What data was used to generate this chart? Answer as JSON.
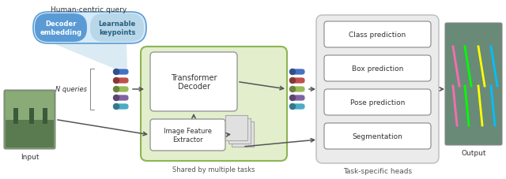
{
  "bg_color": "#ffffff",
  "title": "Human-centric query",
  "query_box_left_label": "Decoder\nembedding",
  "query_box_right_label": "Learnable\nkeypoints",
  "query_box_fill_left": "#5b9bd5",
  "query_box_fill_right": "#b8d8ea",
  "query_box_outline": "#5b9bd5",
  "query_box_outer_fill": "#d6eaf8",
  "n_queries_label": "N queries",
  "transformer_label": "Transformer\nDecoder",
  "transformer_fill": "#ffffff",
  "transformer_outline": "#999999",
  "shared_bg_fill": "#e2eecc",
  "shared_bg_outline": "#8db554",
  "shared_label": "Shared by multiple tasks",
  "image_feature_label": "Image Feature\nExtractor",
  "image_feature_fill": "#ffffff",
  "image_feature_outline": "#999999",
  "task_heads_labels": [
    "Class prediction",
    "Box prediction",
    "Pose prediction",
    "Segmentation"
  ],
  "task_heads_bg": "#ebebeb",
  "task_heads_outline": "#bbbbbb",
  "task_box_fill": "#ffffff",
  "task_box_outline": "#888888",
  "task_heads_section_label": "Task-specific heads",
  "output_label": "Output",
  "input_label": "Input",
  "query_colors": [
    "#4472c4",
    "#c0504d",
    "#9bbb59",
    "#8064a2",
    "#4bacc6"
  ],
  "arrow_color": "#555555",
  "funnel_color": "#b8d8ea"
}
